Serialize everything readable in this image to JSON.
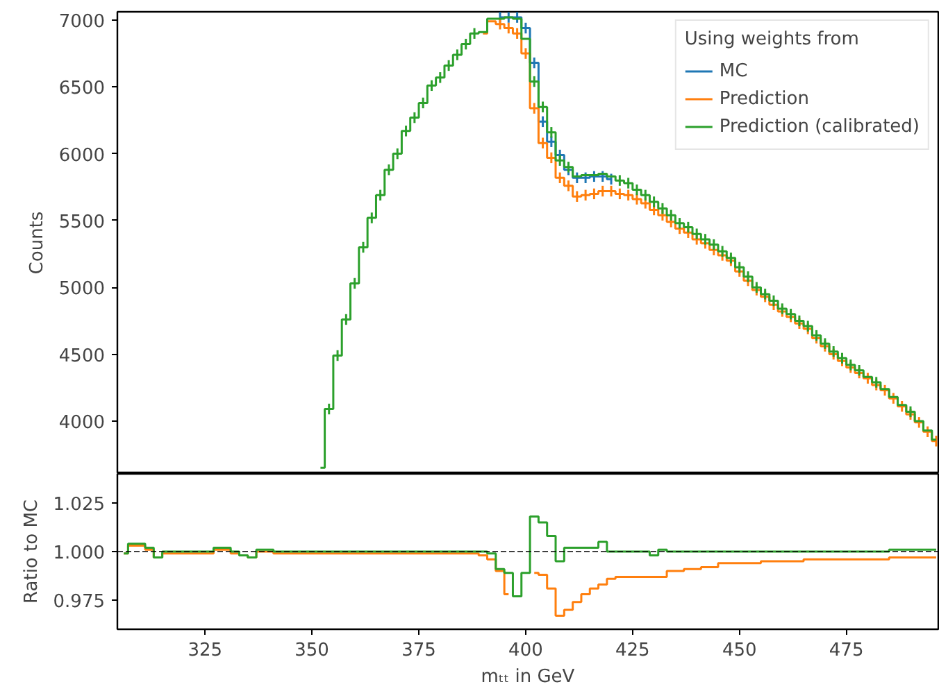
{
  "chart_data": [
    {
      "type": "step",
      "ylabel": "Counts",
      "legend_title": "Using weights from",
      "legend": "top right",
      "tick_labels": "y",
      "xlim": [
        304.5,
        496.5
      ],
      "ylim": [
        3605,
        7062
      ],
      "yticks": [
        4000,
        4500,
        5000,
        5500,
        6000,
        6500,
        7000
      ],
      "x": [
        352,
        354,
        356,
        358,
        360,
        362,
        364,
        366,
        368,
        370,
        372,
        374,
        376,
        378,
        380,
        382,
        384,
        386,
        388,
        390,
        392,
        394,
        396,
        398,
        400,
        402,
        404,
        406,
        408,
        410,
        412,
        414,
        416,
        418,
        420,
        422,
        424,
        426,
        428,
        430,
        432,
        434,
        436,
        438,
        440,
        442,
        444,
        446,
        448,
        450,
        452,
        454,
        456,
        458,
        460,
        462,
        464,
        466,
        468,
        470,
        472,
        474,
        476,
        478,
        480,
        482,
        484,
        486,
        488,
        490,
        492,
        494,
        496
      ],
      "series": [
        {
          "name": "MC",
          "color": "#1f77b4",
          "values": [
            null,
            null,
            null,
            null,
            null,
            null,
            null,
            null,
            null,
            null,
            null,
            null,
            null,
            null,
            null,
            null,
            null,
            null,
            null,
            null,
            null,
            7020,
            7020,
            7020,
            6940,
            6680,
            6240,
            6090,
            5990,
            5880,
            5820,
            5820,
            5830,
            5830,
            5810,
            null,
            null,
            null,
            null,
            null,
            null,
            null,
            null,
            null,
            null,
            null,
            null,
            null,
            null,
            null,
            null,
            null,
            null,
            null,
            null,
            null,
            null,
            null,
            null,
            null,
            null,
            null,
            null,
            null,
            null,
            null,
            null,
            null,
            null,
            null,
            null,
            null,
            null
          ],
          "errors": [
            null,
            null,
            null,
            null,
            null,
            null,
            null,
            null,
            null,
            null,
            null,
            null,
            null,
            null,
            null,
            null,
            null,
            null,
            null,
            null,
            null,
            40,
            40,
            40,
            40,
            40,
            40,
            40,
            40,
            40,
            40,
            40,
            40,
            40,
            40,
            null,
            null,
            null,
            null,
            null,
            null,
            null,
            null,
            null,
            null,
            null,
            null,
            null,
            null,
            null,
            null,
            null,
            null,
            null,
            null,
            null,
            null,
            null,
            null,
            null,
            null,
            null,
            null,
            null,
            null,
            null,
            null,
            null,
            null,
            null,
            null,
            null,
            null
          ]
        },
        {
          "name": "Prediction",
          "color": "#ff7f0e",
          "values": [
            null,
            null,
            null,
            null,
            null,
            null,
            null,
            null,
            null,
            null,
            null,
            null,
            null,
            null,
            null,
            null,
            null,
            null,
            null,
            6900,
            6990,
            6970,
            6940,
            6900,
            6750,
            6340,
            6080,
            5970,
            5820,
            5760,
            5680,
            5690,
            5700,
            5720,
            5720,
            5700,
            5690,
            5660,
            5630,
            5580,
            5540,
            5490,
            5440,
            5410,
            5360,
            5330,
            5280,
            5240,
            5200,
            5120,
            5050,
            4980,
            4930,
            4870,
            4820,
            4780,
            4730,
            4690,
            4620,
            4560,
            4500,
            4450,
            4400,
            4360,
            4320,
            4270,
            4230,
            4170,
            4110,
            4050,
            3990,
            3920,
            3850
          ],
          "errors": [
            null,
            null,
            null,
            null,
            null,
            null,
            null,
            null,
            null,
            null,
            null,
            null,
            null,
            null,
            null,
            null,
            null,
            null,
            null,
            null,
            null,
            40,
            40,
            40,
            40,
            40,
            40,
            40,
            40,
            40,
            40,
            40,
            40,
            40,
            40,
            40,
            40,
            40,
            40,
            40,
            40,
            40,
            40,
            40,
            40,
            40,
            40,
            40,
            40,
            40,
            40,
            40,
            40,
            40,
            40,
            40,
            40,
            40,
            40,
            40,
            40,
            40,
            40,
            40,
            40,
            40,
            40,
            40,
            40,
            40,
            40,
            40,
            40
          ]
        },
        {
          "name": "Prediction (calibrated)",
          "color": "#2ca02c",
          "values": [
            3650,
            4090,
            4490,
            4760,
            5030,
            5300,
            5520,
            5690,
            5880,
            6000,
            6170,
            6270,
            6380,
            6510,
            6570,
            6660,
            6740,
            6820,
            6900,
            6910,
            7010,
            7010,
            7020,
            7010,
            6860,
            6540,
            6350,
            6160,
            5950,
            5900,
            5830,
            5840,
            5840,
            5850,
            5830,
            5800,
            5780,
            5730,
            5690,
            5640,
            5590,
            5540,
            5480,
            5450,
            5400,
            5360,
            5320,
            5270,
            5220,
            5150,
            5080,
            5000,
            4950,
            4900,
            4840,
            4800,
            4750,
            4710,
            4640,
            4580,
            4520,
            4470,
            4420,
            4380,
            4330,
            4290,
            4240,
            4180,
            4120,
            4070,
            4000,
            3930,
            3860
          ],
          "errors": [
            null,
            40,
            40,
            40,
            40,
            40,
            40,
            40,
            40,
            40,
            40,
            40,
            40,
            40,
            40,
            40,
            40,
            40,
            40,
            null,
            null,
            null,
            null,
            null,
            null,
            40,
            40,
            40,
            40,
            40,
            null,
            null,
            null,
            null,
            null,
            40,
            40,
            40,
            40,
            40,
            40,
            40,
            40,
            40,
            40,
            40,
            40,
            40,
            40,
            40,
            40,
            40,
            40,
            40,
            40,
            40,
            40,
            40,
            40,
            40,
            40,
            40,
            40,
            40,
            null,
            40,
            null,
            null,
            null,
            40,
            null,
            null,
            null
          ]
        }
      ]
    },
    {
      "type": "step",
      "xlabel": "mₜₜ in GeV",
      "ylabel": "Ratio to MC",
      "xlim": [
        304.5,
        496.5
      ],
      "ylim": [
        0.96,
        1.04
      ],
      "xticks": [
        325,
        350,
        375,
        400,
        425,
        450,
        475
      ],
      "yticks": [
        0.975,
        {
          "value": 1,
          "label": "1.000"
        },
        1.025
      ],
      "ref_lines": [
        {
          "axis": "y",
          "value": 1,
          "color": "#000000",
          "line_style": "dashed"
        }
      ],
      "series": [
        {
          "color": "#ff7f0e",
          "x": [
            306,
            308,
            310,
            312,
            314,
            316,
            326,
            328,
            330,
            332,
            334,
            336,
            338,
            340,
            342,
            388,
            390,
            392,
            394,
            396,
            398,
            400,
            402,
            404,
            406,
            408,
            410,
            412,
            414,
            416,
            418,
            420,
            422,
            432,
            434,
            436,
            438,
            440,
            442,
            444,
            446,
            454,
            456,
            464,
            466,
            484,
            486,
            496
          ],
          "values": [
            0.999,
            1.003,
            1.003,
            1.001,
            0.997,
            0.999,
            0.999,
            1.001,
            1.001,
            0.999,
            0.998,
            0.997,
            1.0,
            1.0,
            0.999,
            0.999,
            0.998,
            0.996,
            0.99,
            0.978,
            null,
            null,
            0.989,
            0.988,
            0.981,
            0.967,
            0.97,
            0.974,
            0.978,
            0.981,
            0.983,
            0.986,
            0.987,
            0.987,
            0.99,
            0.99,
            0.991,
            0.991,
            0.992,
            0.992,
            0.994,
            0.994,
            0.995,
            0.995,
            0.996,
            0.996,
            0.997,
            0.997
          ]
        },
        {
          "color": "#2ca02c",
          "x": [
            306,
            308,
            310,
            312,
            314,
            316,
            326,
            328,
            330,
            332,
            334,
            336,
            338,
            340,
            342,
            390,
            392,
            394,
            396,
            398,
            400,
            402,
            404,
            406,
            408,
            410,
            416,
            418,
            420,
            428,
            430,
            432,
            434,
            484,
            486,
            496
          ],
          "values": [
            0.999,
            1.004,
            1.004,
            1.002,
            0.997,
            1.0,
            1.0,
            1.002,
            1.002,
            1.0,
            0.998,
            0.997,
            1.001,
            1.001,
            1.0,
            1.0,
            0.999,
            0.991,
            0.989,
            0.977,
            0.989,
            1.018,
            1.015,
            1.008,
            0.995,
            1.002,
            1.002,
            1.005,
            1.0,
            1.0,
            0.998,
            1.001,
            1.0,
            1.0,
            1.001,
            1.001
          ]
        }
      ]
    }
  ]
}
